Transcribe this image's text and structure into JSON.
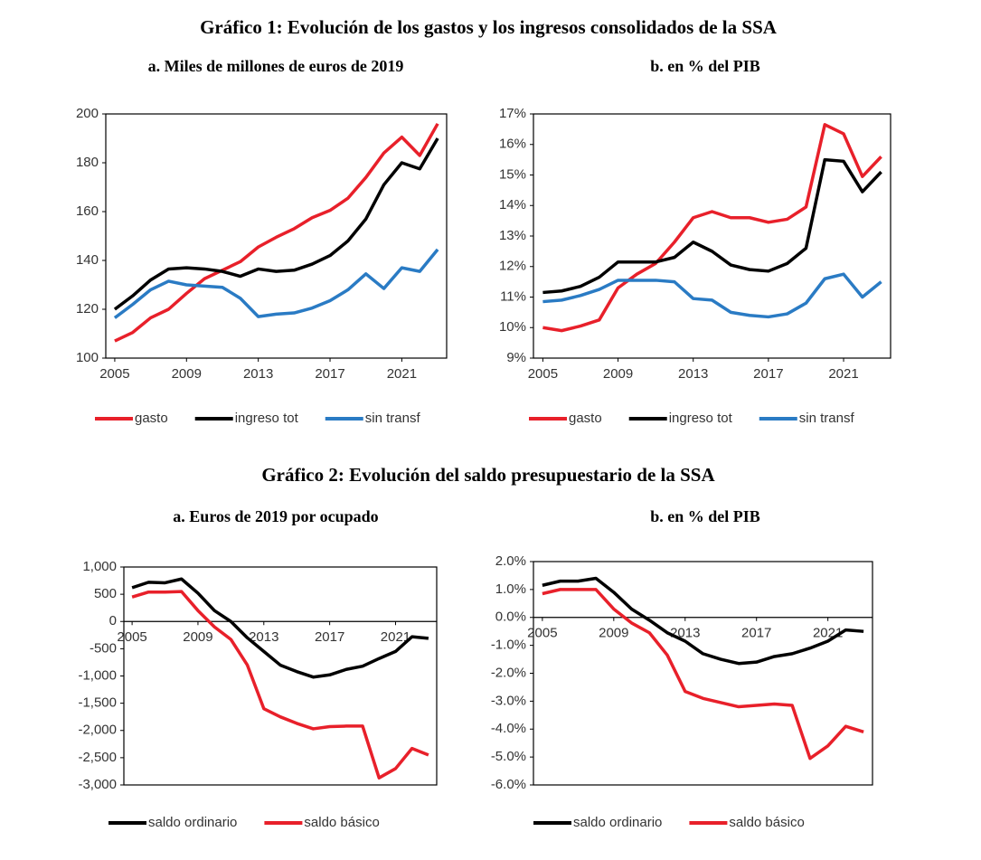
{
  "headings": [
    "Gráfico 1: Evolución de los gastos y los ingresos consolidados de la SSA",
    "Gráfico 2: Evolución del saldo presupuestario de la SSA"
  ],
  "chart_data": [
    {
      "type": "line",
      "title": "a. Miles de millones de euros de 2019",
      "x": [
        2005,
        2006,
        2007,
        2008,
        2009,
        2010,
        2011,
        2012,
        2013,
        2014,
        2015,
        2016,
        2017,
        2018,
        2019,
        2020,
        2021,
        2022,
        2023
      ],
      "xlim": [
        2004.5,
        2023.5
      ],
      "xticks": [
        2005,
        2009,
        2013,
        2017,
        2021
      ],
      "ylim": [
        100,
        200
      ],
      "yticks": [
        100,
        120,
        140,
        160,
        180,
        200
      ],
      "series": [
        {
          "name": "gasto",
          "color": "#e8202a",
          "values": [
            107,
            110.5,
            116.5,
            120,
            126.5,
            132.5,
            136,
            139.5,
            145.5,
            149.5,
            153,
            157.5,
            160.5,
            165.5,
            174,
            184,
            190.5,
            183,
            196
          ]
        },
        {
          "name": "ingreso tot",
          "color": "#000000",
          "values": [
            120,
            125.5,
            132,
            136.5,
            137,
            136.5,
            135.5,
            133.5,
            136.5,
            135.5,
            136,
            138.5,
            142,
            148,
            157,
            171,
            180,
            177.5,
            190
          ]
        },
        {
          "name": "sin transf",
          "color": "#2a7bc4",
          "values": [
            116.5,
            122,
            128,
            131.5,
            130,
            129.5,
            129,
            124.5,
            117,
            118,
            118.5,
            120.5,
            123.5,
            128,
            134.5,
            128.5,
            137,
            135.5,
            144.5
          ]
        }
      ]
    },
    {
      "type": "line",
      "title": "b. en % del PIB",
      "x": [
        2005,
        2006,
        2007,
        2008,
        2009,
        2010,
        2011,
        2012,
        2013,
        2014,
        2015,
        2016,
        2017,
        2018,
        2019,
        2020,
        2021,
        2022,
        2023
      ],
      "xlim": [
        2004.5,
        2023.5
      ],
      "xticks": [
        2005,
        2009,
        2013,
        2017,
        2021
      ],
      "ylim": [
        9,
        17
      ],
      "yticks": [
        {
          "value": 9,
          "label": "9%"
        },
        {
          "value": 10,
          "label": "10%"
        },
        {
          "value": 11,
          "label": "11%"
        },
        {
          "value": 12,
          "label": "12%"
        },
        {
          "value": 13,
          "label": "13%"
        },
        {
          "value": 14,
          "label": "14%"
        },
        {
          "value": 15,
          "label": "15%"
        },
        {
          "value": 16,
          "label": "16%"
        },
        {
          "value": 17,
          "label": "17%"
        }
      ],
      "series": [
        {
          "name": "gasto",
          "color": "#e8202a",
          "values": [
            10.0,
            9.9,
            10.05,
            10.25,
            11.3,
            11.75,
            12.1,
            12.8,
            13.6,
            13.8,
            13.6,
            13.6,
            13.45,
            13.55,
            13.95,
            16.65,
            16.35,
            14.95,
            15.6
          ]
        },
        {
          "name": "ingreso tot",
          "color": "#000000",
          "values": [
            11.15,
            11.2,
            11.35,
            11.65,
            12.15,
            12.15,
            12.15,
            12.3,
            12.8,
            12.5,
            12.05,
            11.9,
            11.85,
            12.1,
            12.6,
            15.5,
            15.45,
            14.45,
            15.1
          ]
        },
        {
          "name": "sin transf",
          "color": "#2a7bc4",
          "values": [
            10.85,
            10.9,
            11.05,
            11.25,
            11.55,
            11.55,
            11.55,
            11.5,
            10.95,
            10.9,
            10.5,
            10.4,
            10.35,
            10.45,
            10.8,
            11.6,
            11.75,
            11.0,
            11.5
          ]
        }
      ]
    },
    {
      "type": "line",
      "title": "a. Euros de 2019 por ocupado",
      "x": [
        2005,
        2006,
        2007,
        2008,
        2009,
        2010,
        2011,
        2012,
        2013,
        2014,
        2015,
        2016,
        2017,
        2018,
        2019,
        2020,
        2021,
        2022,
        2023
      ],
      "xlim": [
        2004.5,
        2023.5
      ],
      "xticks": [
        2005,
        2009,
        2013,
        2017,
        2021
      ],
      "ylim": [
        -3000,
        1000
      ],
      "yticks": [
        {
          "value": 1000,
          "label": "1,000"
        },
        500,
        0,
        -500,
        {
          "value": -1000,
          "label": "-1,000"
        },
        {
          "value": -1500,
          "label": "-1,500"
        },
        {
          "value": -2000,
          "label": "-2,000"
        },
        {
          "value": -2500,
          "label": "-2,500"
        },
        {
          "value": -3000,
          "label": "-3,000"
        }
      ],
      "series": [
        {
          "name": "saldo ordinario",
          "color": "#000000",
          "values": [
            620,
            720,
            710,
            780,
            520,
            200,
            0,
            -300,
            -550,
            -800,
            -920,
            -1020,
            -980,
            -880,
            -820,
            -680,
            -550,
            -280,
            -310
          ]
        },
        {
          "name": "saldo básico",
          "color": "#e8202a",
          "values": [
            450,
            540,
            540,
            550,
            200,
            -100,
            -330,
            -800,
            -1600,
            -1750,
            -1870,
            -1970,
            -1930,
            -1920,
            -1920,
            -2870,
            -2700,
            -2330,
            -2450
          ]
        }
      ]
    },
    {
      "type": "line",
      "title": "b. en % del PIB",
      "x": [
        2005,
        2006,
        2007,
        2008,
        2009,
        2010,
        2011,
        2012,
        2013,
        2014,
        2015,
        2016,
        2017,
        2018,
        2019,
        2020,
        2021,
        2022,
        2023
      ],
      "xlim": [
        2004.5,
        2023.5
      ],
      "xticks": [
        2005,
        2009,
        2013,
        2017,
        2021
      ],
      "ylim": [
        -6,
        2
      ],
      "yticks": [
        {
          "value": 2,
          "label": "2.0%"
        },
        {
          "value": 1,
          "label": "1.0%"
        },
        {
          "value": 0,
          "label": "0.0%"
        },
        {
          "value": -1,
          "label": "-1.0%"
        },
        {
          "value": -2,
          "label": "-2.0%"
        },
        {
          "value": -3,
          "label": "-3.0%"
        },
        {
          "value": -4,
          "label": "-4.0%"
        },
        {
          "value": -5,
          "label": "-5.0%"
        },
        {
          "value": -6,
          "label": "-6.0%"
        }
      ],
      "series": [
        {
          "name": "saldo ordinario",
          "color": "#000000",
          "values": [
            1.15,
            1.3,
            1.3,
            1.4,
            0.9,
            0.3,
            -0.1,
            -0.55,
            -0.85,
            -1.3,
            -1.5,
            -1.65,
            -1.6,
            -1.4,
            -1.3,
            -1.1,
            -0.85,
            -0.45,
            -0.5
          ]
        },
        {
          "name": "saldo básico",
          "color": "#e8202a",
          "values": [
            0.85,
            1.0,
            1.0,
            1.0,
            0.3,
            -0.2,
            -0.55,
            -1.35,
            -2.65,
            -2.9,
            -3.05,
            -3.2,
            -3.15,
            -3.1,
            -3.15,
            -5.05,
            -4.6,
            -3.9,
            -4.1
          ]
        }
      ]
    }
  ]
}
